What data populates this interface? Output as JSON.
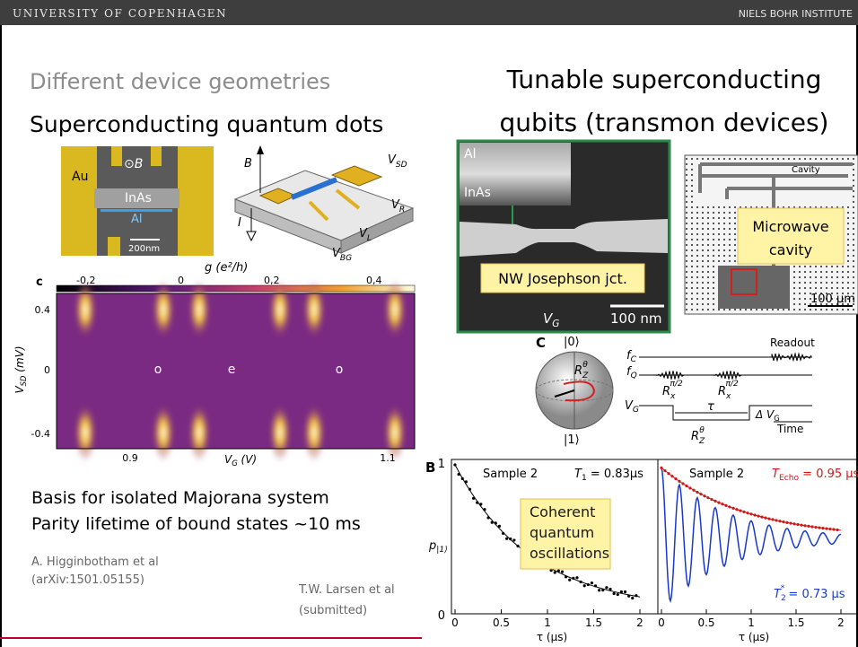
{
  "header": {
    "university": "UNIVERSITY OF COPENHAGEN",
    "institute": "NIELS BOHR INSTITUTE"
  },
  "left": {
    "subtitle": "Different device geometries",
    "title": "Superconducting quantum dots",
    "sem": {
      "au": "Au",
      "field": "⊙B",
      "inas": "InAs",
      "al": "Al",
      "scale": "200nm"
    },
    "schematic": {
      "b": "B",
      "vsd": [
        "V",
        "SD"
      ],
      "vr": [
        "V",
        "R"
      ],
      "vl": [
        "V",
        "L"
      ],
      "i": "I",
      "vbg": [
        "V",
        "BG"
      ]
    },
    "map": {
      "panel": "c",
      "cbar_label": "g (e²/h)",
      "cbar_ticks": [
        "-0,2",
        "0",
        "0,2",
        "0,4"
      ],
      "yticks": [
        "0.4",
        "0",
        "-0.4"
      ],
      "ylabel": [
        "V",
        "SD",
        " (mV)"
      ],
      "xticks": [
        "0.9",
        "1.1"
      ],
      "xlabel": [
        "V",
        "G",
        " (V)"
      ],
      "parity": [
        "o",
        "e",
        "o"
      ]
    },
    "notes": [
      "Basis for isolated Majorana system",
      "Parity lifetime of bound states ~10 ms"
    ],
    "reference": [
      "A. Higginbotham et al",
      "(arXiv:1501.05155)"
    ]
  },
  "right": {
    "title": [
      "Tunable superconducting",
      "qubits (transmon devices)"
    ],
    "nanowire": {
      "al": "Al",
      "inas": "InAs",
      "callout": "NW Josephson jct.",
      "gate": [
        "V",
        "G"
      ],
      "scale": "100 nm"
    },
    "cavity": {
      "label": "Cavity",
      "callout": [
        "Microwave",
        "cavity"
      ],
      "scale": "100 µm"
    },
    "bloch": {
      "panel": "C",
      "ket0": "|0⟩",
      "ket1": "|1⟩",
      "rz": [
        "R",
        "Z",
        "θ"
      ],
      "fc": [
        "f",
        "C"
      ],
      "fq": [
        "f",
        "Q"
      ],
      "vg": [
        "V",
        "G"
      ],
      "readout": "Readout",
      "rx": [
        "R",
        "x",
        "π/2"
      ],
      "tau": "τ",
      "dvg": [
        "Δ V",
        "G"
      ],
      "time": "Time"
    },
    "coherence": {
      "panel": "B",
      "left_sample": "Sample 2",
      "t1": [
        "T",
        "1",
        " = 0.83µs"
      ],
      "right_sample": "Sample 2",
      "techo": [
        "T",
        "Echo",
        " = 0.95 µs"
      ],
      "t2": [
        "T",
        "2",
        "*",
        " = 0.73 µs"
      ],
      "ylabel": [
        "p",
        "|1⟩"
      ],
      "yticks": [
        "1",
        "0"
      ],
      "xticks": [
        "0",
        "0.5",
        "1",
        "1.5",
        "2"
      ],
      "xlabel": "τ (µs)",
      "callout": [
        "Coherent",
        "quantum",
        "oscillations"
      ]
    },
    "credit": [
      "T.W. Larsen et al",
      "(submitted)"
    ]
  }
}
